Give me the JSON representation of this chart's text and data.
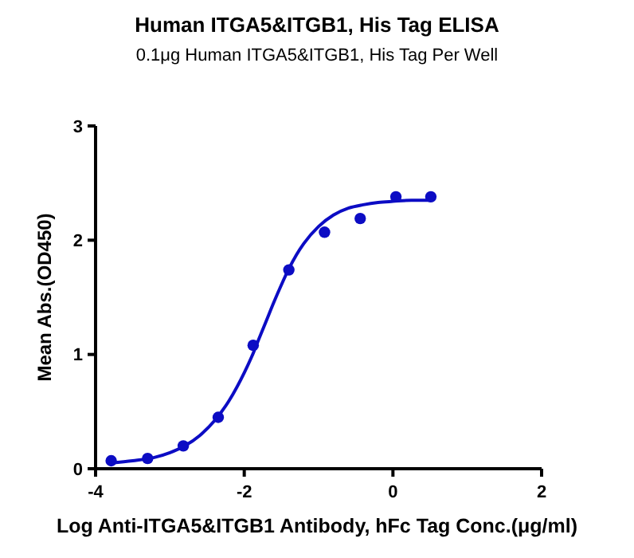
{
  "chart_data": {
    "type": "scatter",
    "title": "Human ITGA5&ITGB1, His Tag ELISA",
    "subtitle": "0.1μg Human ITGA5&ITGB1, His Tag Per Well",
    "xlabel": "Log Anti-ITGA5&ITGB1 Antibody, hFc Tag Conc.(μg/ml)",
    "ylabel": "Mean Abs.(OD450)",
    "xlim": [
      -4,
      2
    ],
    "xticks": [
      -4,
      -2,
      0,
      2
    ],
    "ylim": [
      0,
      3
    ],
    "yticks": [
      0,
      1,
      2,
      3
    ],
    "grid": false,
    "series": [
      {
        "color": "#0c0cc4",
        "marker": "circle",
        "x": [
          -3.79,
          -3.3,
          -2.82,
          -2.35,
          -1.88,
          -1.4,
          -0.92,
          -0.44,
          0.04,
          0.51
        ],
        "values": [
          0.07,
          0.09,
          0.2,
          0.45,
          1.08,
          1.74,
          2.07,
          2.19,
          2.38,
          2.38
        ]
      },
      {
        "type": "line",
        "color": "#0c0cc4",
        "line_style": "solid",
        "x": [
          -3.79,
          -3.5,
          -3.2,
          -3.0,
          -2.8,
          -2.6,
          -2.4,
          -2.2,
          -2.0,
          -1.9,
          -1.8,
          -1.7,
          -1.6,
          -1.5,
          -1.4,
          -1.3,
          -1.2,
          -1.0,
          -0.8,
          -0.6,
          -0.4,
          -0.2,
          0.0,
          0.25,
          0.51
        ],
        "values": [
          0.05,
          0.07,
          0.1,
          0.14,
          0.2,
          0.29,
          0.42,
          0.6,
          0.84,
          0.98,
          1.14,
          1.3,
          1.46,
          1.61,
          1.75,
          1.87,
          1.97,
          2.12,
          2.22,
          2.28,
          2.31,
          2.33,
          2.34,
          2.35,
          2.35
        ]
      }
    ]
  }
}
